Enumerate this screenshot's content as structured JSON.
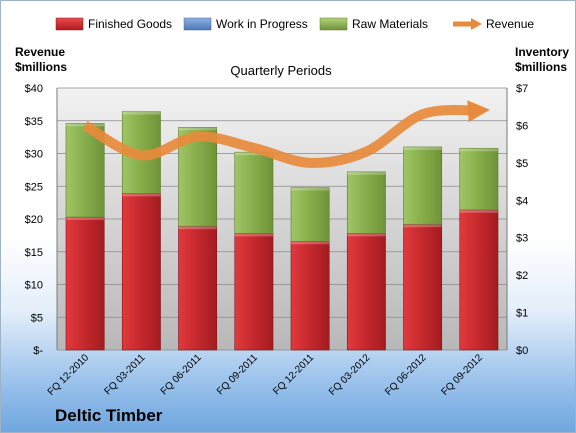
{
  "chart_data": {
    "type": "bar",
    "stacked": true,
    "company": "Deltic Timber",
    "title": "Quarterly Periods",
    "left_axis": {
      "title_line1": "Revenue",
      "title_line2": "$millions",
      "ylim": [
        0,
        40
      ],
      "ticks": [
        "$-",
        "$5",
        "$10",
        "$15",
        "$20",
        "$25",
        "$30",
        "$35",
        "$40"
      ]
    },
    "right_axis": {
      "title_line1": "Inventory",
      "title_line2": "$millions",
      "ylim": [
        0,
        7
      ],
      "ticks": [
        "$0",
        "$1",
        "$2",
        "$3",
        "$4",
        "$5",
        "$6",
        "$7"
      ]
    },
    "categories": [
      "FQ 12-2010",
      "FQ 03-2011",
      "FQ 06-2011",
      "FQ 09-2011",
      "FQ 12-2011",
      "FQ 03-2012",
      "FQ 06-2012",
      "FQ 09-2012"
    ],
    "series": [
      {
        "name": "Finished Goods",
        "axis": "left",
        "color": "#c0262b",
        "values": [
          20.3,
          23.9,
          18.9,
          17.8,
          16.6,
          17.8,
          19.2,
          21.4
        ]
      },
      {
        "name": "Work in Progress",
        "axis": "left",
        "color": "#5b86c8",
        "values": [
          0,
          0,
          0,
          0,
          0,
          0,
          0,
          0
        ]
      },
      {
        "name": "Raw Materials",
        "axis": "left",
        "color": "#8cb24f",
        "values": [
          14.3,
          12.5,
          15.1,
          12.4,
          8.2,
          9.4,
          11.8,
          9.4
        ]
      },
      {
        "name": "Revenue",
        "axis": "right",
        "type": "line",
        "color": "#e88a3c",
        "values": [
          6.0,
          5.2,
          5.7,
          5.4,
          5.0,
          5.3,
          6.3,
          6.4
        ]
      }
    ],
    "grid": true,
    "legend": "top"
  }
}
